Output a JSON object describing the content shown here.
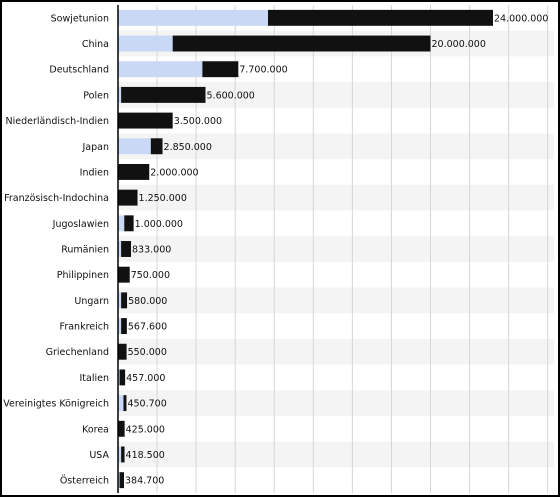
{
  "colors": {
    "bar_dark": "#111111",
    "bar_light": "#c9d9f5",
    "row_alt": "#f4f4f4",
    "grid": "#d6d6d6",
    "axis": "#000000"
  },
  "chart_data": {
    "type": "bar",
    "orientation": "horizontal",
    "categories": [
      "Sowjetunion",
      "China",
      "Deutschland",
      "Polen",
      "Niederländisch-Indien",
      "Japan",
      "Indien",
      "Französisch-Indochina",
      "Jugoslawien",
      "Rumänien",
      "Philippinen",
      "Ungarn",
      "Frankreich",
      "Griechenland",
      "Italien",
      "Vereinigtes Königreich",
      "Korea",
      "USA",
      "Österreich"
    ],
    "series": [
      {
        "color": "#111111",
        "values": [
          24000000,
          20000000,
          7700000,
          5600000,
          3500000,
          2850000,
          2000000,
          1250000,
          1000000,
          833000,
          750000,
          580000,
          567600,
          550000,
          457000,
          450700,
          425000,
          418500,
          384700
        ],
        "start": [
          9600000,
          3500000,
          5400000,
          200000,
          0,
          2100000,
          0,
          0,
          400000,
          200000,
          0,
          200000,
          200000,
          0,
          100000,
          350000,
          0,
          200000,
          100000
        ]
      },
      {
        "color": "#c9d9f5",
        "values": [
          9600000,
          3500000,
          5400000,
          200000,
          0,
          2100000,
          0,
          0,
          400000,
          200000,
          0,
          200000,
          200000,
          0,
          100000,
          350000,
          0,
          200000,
          100000
        ]
      }
    ],
    "data_labels": [
      "24.000.000",
      "20.000.000",
      "7.700.000",
      "5.600.000",
      "3.500.000",
      "2.850.000",
      "2.000.000",
      "1.250.000",
      "1.000.000",
      "833.000",
      "750.000",
      "580.000",
      "567.600",
      "550.000",
      "457.000",
      "450.700",
      "425.000",
      "418.500",
      "384.700"
    ],
    "xlim": [
      0,
      28000000
    ],
    "grid": true,
    "legend": "none"
  }
}
